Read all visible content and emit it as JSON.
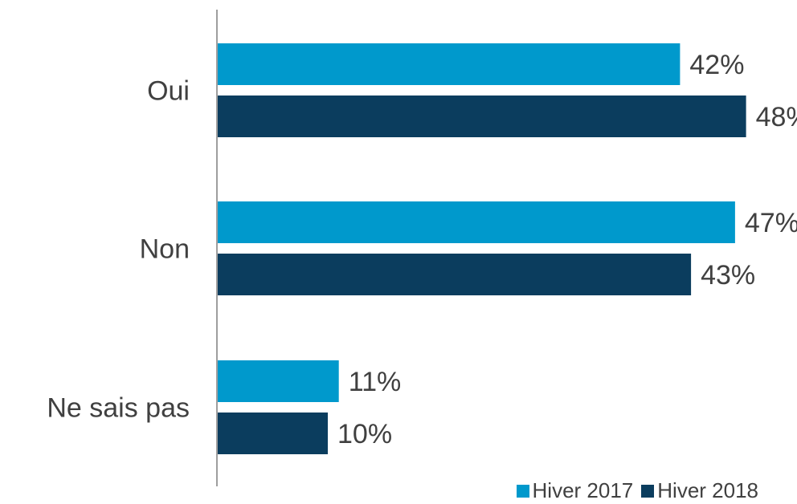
{
  "chart_data": {
    "type": "bar",
    "orientation": "horizontal",
    "categories": [
      "Oui",
      "Non",
      "Ne sais pas"
    ],
    "series": [
      {
        "name": "Hiver 2017",
        "values": [
          42,
          47,
          11
        ],
        "color": "#0099CC"
      },
      {
        "name": "Hiver 2018",
        "values": [
          48,
          43,
          10
        ],
        "color": "#0B3D5E"
      }
    ],
    "value_suffix": "%",
    "xlim": [
      0,
      50
    ],
    "grid": false,
    "legend_position": "bottom-right"
  }
}
